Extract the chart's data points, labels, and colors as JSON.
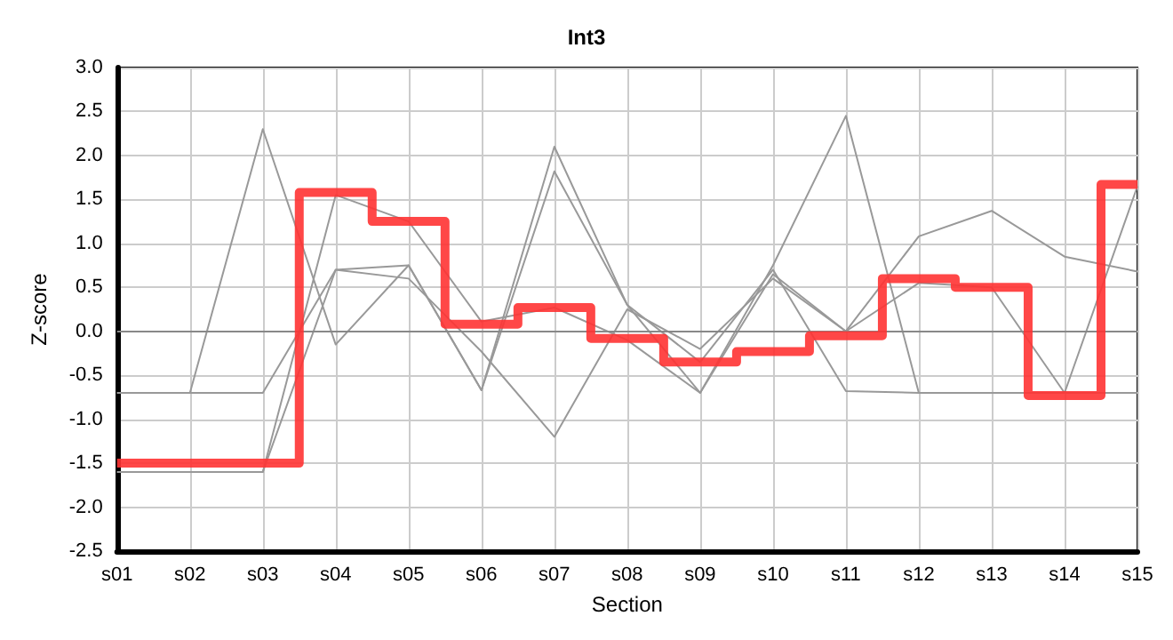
{
  "chart_data": {
    "type": "line",
    "title": "Int3",
    "xlabel": "Section",
    "ylabel": "Z-score",
    "categories": [
      "s01",
      "s02",
      "s03",
      "s04",
      "s05",
      "s06",
      "s07",
      "s08",
      "s09",
      "s10",
      "s11",
      "s12",
      "s13",
      "s14",
      "s15"
    ],
    "series": [
      {
        "color": "#999999",
        "values": [
          -0.7,
          -0.7,
          2.3,
          -0.15,
          0.75,
          -0.67,
          2.1,
          0.3,
          -0.7,
          0.75,
          2.45,
          -0.7,
          -0.7,
          -0.7,
          -0.7
        ]
      },
      {
        "color": "#999999",
        "values": [
          -0.7,
          -0.7,
          -0.7,
          0.7,
          0.6,
          -0.23,
          -1.2,
          0.25,
          -0.2,
          0.6,
          0,
          1.08,
          1.37,
          0.85,
          0.68
        ]
      },
      {
        "color": "#999999",
        "values": [
          -1.6,
          -1.6,
          -1.6,
          1.55,
          1.25,
          0.11,
          0.27,
          -0.1,
          -0.7,
          0.65,
          0,
          0.55,
          0.5,
          -0.7,
          1.65
        ]
      },
      {
        "color": "#999999",
        "values": [
          -1.6,
          -1.6,
          -1.6,
          0.7,
          0.75,
          -0.67,
          1.82,
          0.3,
          -0.35,
          0.7,
          -0.68,
          -0.7,
          -0.7,
          -0.7,
          -0.7
        ]
      },
      {
        "type": "step",
        "color": "#ff3333",
        "values": [
          -1.5,
          -1.5,
          -1.5,
          1.58,
          1.25,
          0.08,
          0.27,
          -0.08,
          -0.35,
          -0.23,
          -0.05,
          0.6,
          0.5,
          -0.73,
          1.67
        ]
      }
    ],
    "ylim": [
      -2.5,
      3.0
    ],
    "yticks": [
      {
        "value": -2.5,
        "label": "-2.5"
      },
      {
        "value": -2,
        "label": "-2.0"
      },
      {
        "value": -1.5,
        "label": "-1.5"
      },
      {
        "value": -1,
        "label": "-1.0"
      },
      {
        "value": -0.5,
        "label": "-0.5"
      },
      {
        "value": 0,
        "label": "0.0"
      },
      {
        "value": 0.5,
        "label": "0.5"
      },
      {
        "value": 1,
        "label": "1.0"
      },
      {
        "value": 1.5,
        "label": "1.5"
      },
      {
        "value": 2,
        "label": "2.0"
      },
      {
        "value": 2.5,
        "label": "2.5"
      },
      {
        "value": 3,
        "label": "3.0"
      }
    ],
    "ref_lines": [
      {
        "axis": "y",
        "value": 0,
        "color": "#888888"
      }
    ],
    "grid": true,
    "marker": "none",
    "line_style": "solid"
  }
}
